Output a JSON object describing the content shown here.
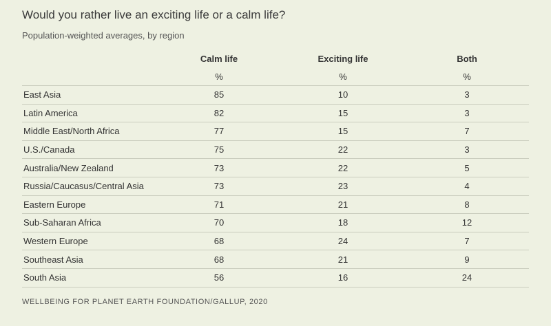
{
  "chart_data": {
    "type": "table",
    "title": "Would you rather live an exciting life or a calm life?",
    "subtitle": "Population-weighted averages, by region",
    "columns": [
      {
        "label": "Calm life",
        "unit": "%"
      },
      {
        "label": "Exciting life",
        "unit": "%"
      },
      {
        "label": "Both",
        "unit": "%"
      }
    ],
    "rows": [
      {
        "region": "East Asia",
        "values": [
          85,
          10,
          3
        ]
      },
      {
        "region": "Latin America",
        "values": [
          82,
          15,
          3
        ]
      },
      {
        "region": "Middle East/North Africa",
        "values": [
          77,
          15,
          7
        ]
      },
      {
        "region": "U.S./Canada",
        "values": [
          75,
          22,
          3
        ]
      },
      {
        "region": "Australia/New Zealand",
        "values": [
          73,
          22,
          5
        ]
      },
      {
        "region": "Russia/Caucasus/Central Asia",
        "values": [
          73,
          23,
          4
        ]
      },
      {
        "region": "Eastern Europe",
        "values": [
          71,
          21,
          8
        ]
      },
      {
        "region": "Sub-Saharan Africa",
        "values": [
          70,
          18,
          12
        ]
      },
      {
        "region": "Western Europe",
        "values": [
          68,
          24,
          7
        ]
      },
      {
        "region": "Southeast Asia",
        "values": [
          68,
          21,
          9
        ]
      },
      {
        "region": "South Asia",
        "values": [
          56,
          16,
          24
        ]
      }
    ],
    "source": "WELLBEING FOR PLANET EARTH FOUNDATION/GALLUP, 2020"
  },
  "colors": {
    "background": "#eef1e2",
    "rule": "#c9ccbd",
    "text": "#333333"
  }
}
